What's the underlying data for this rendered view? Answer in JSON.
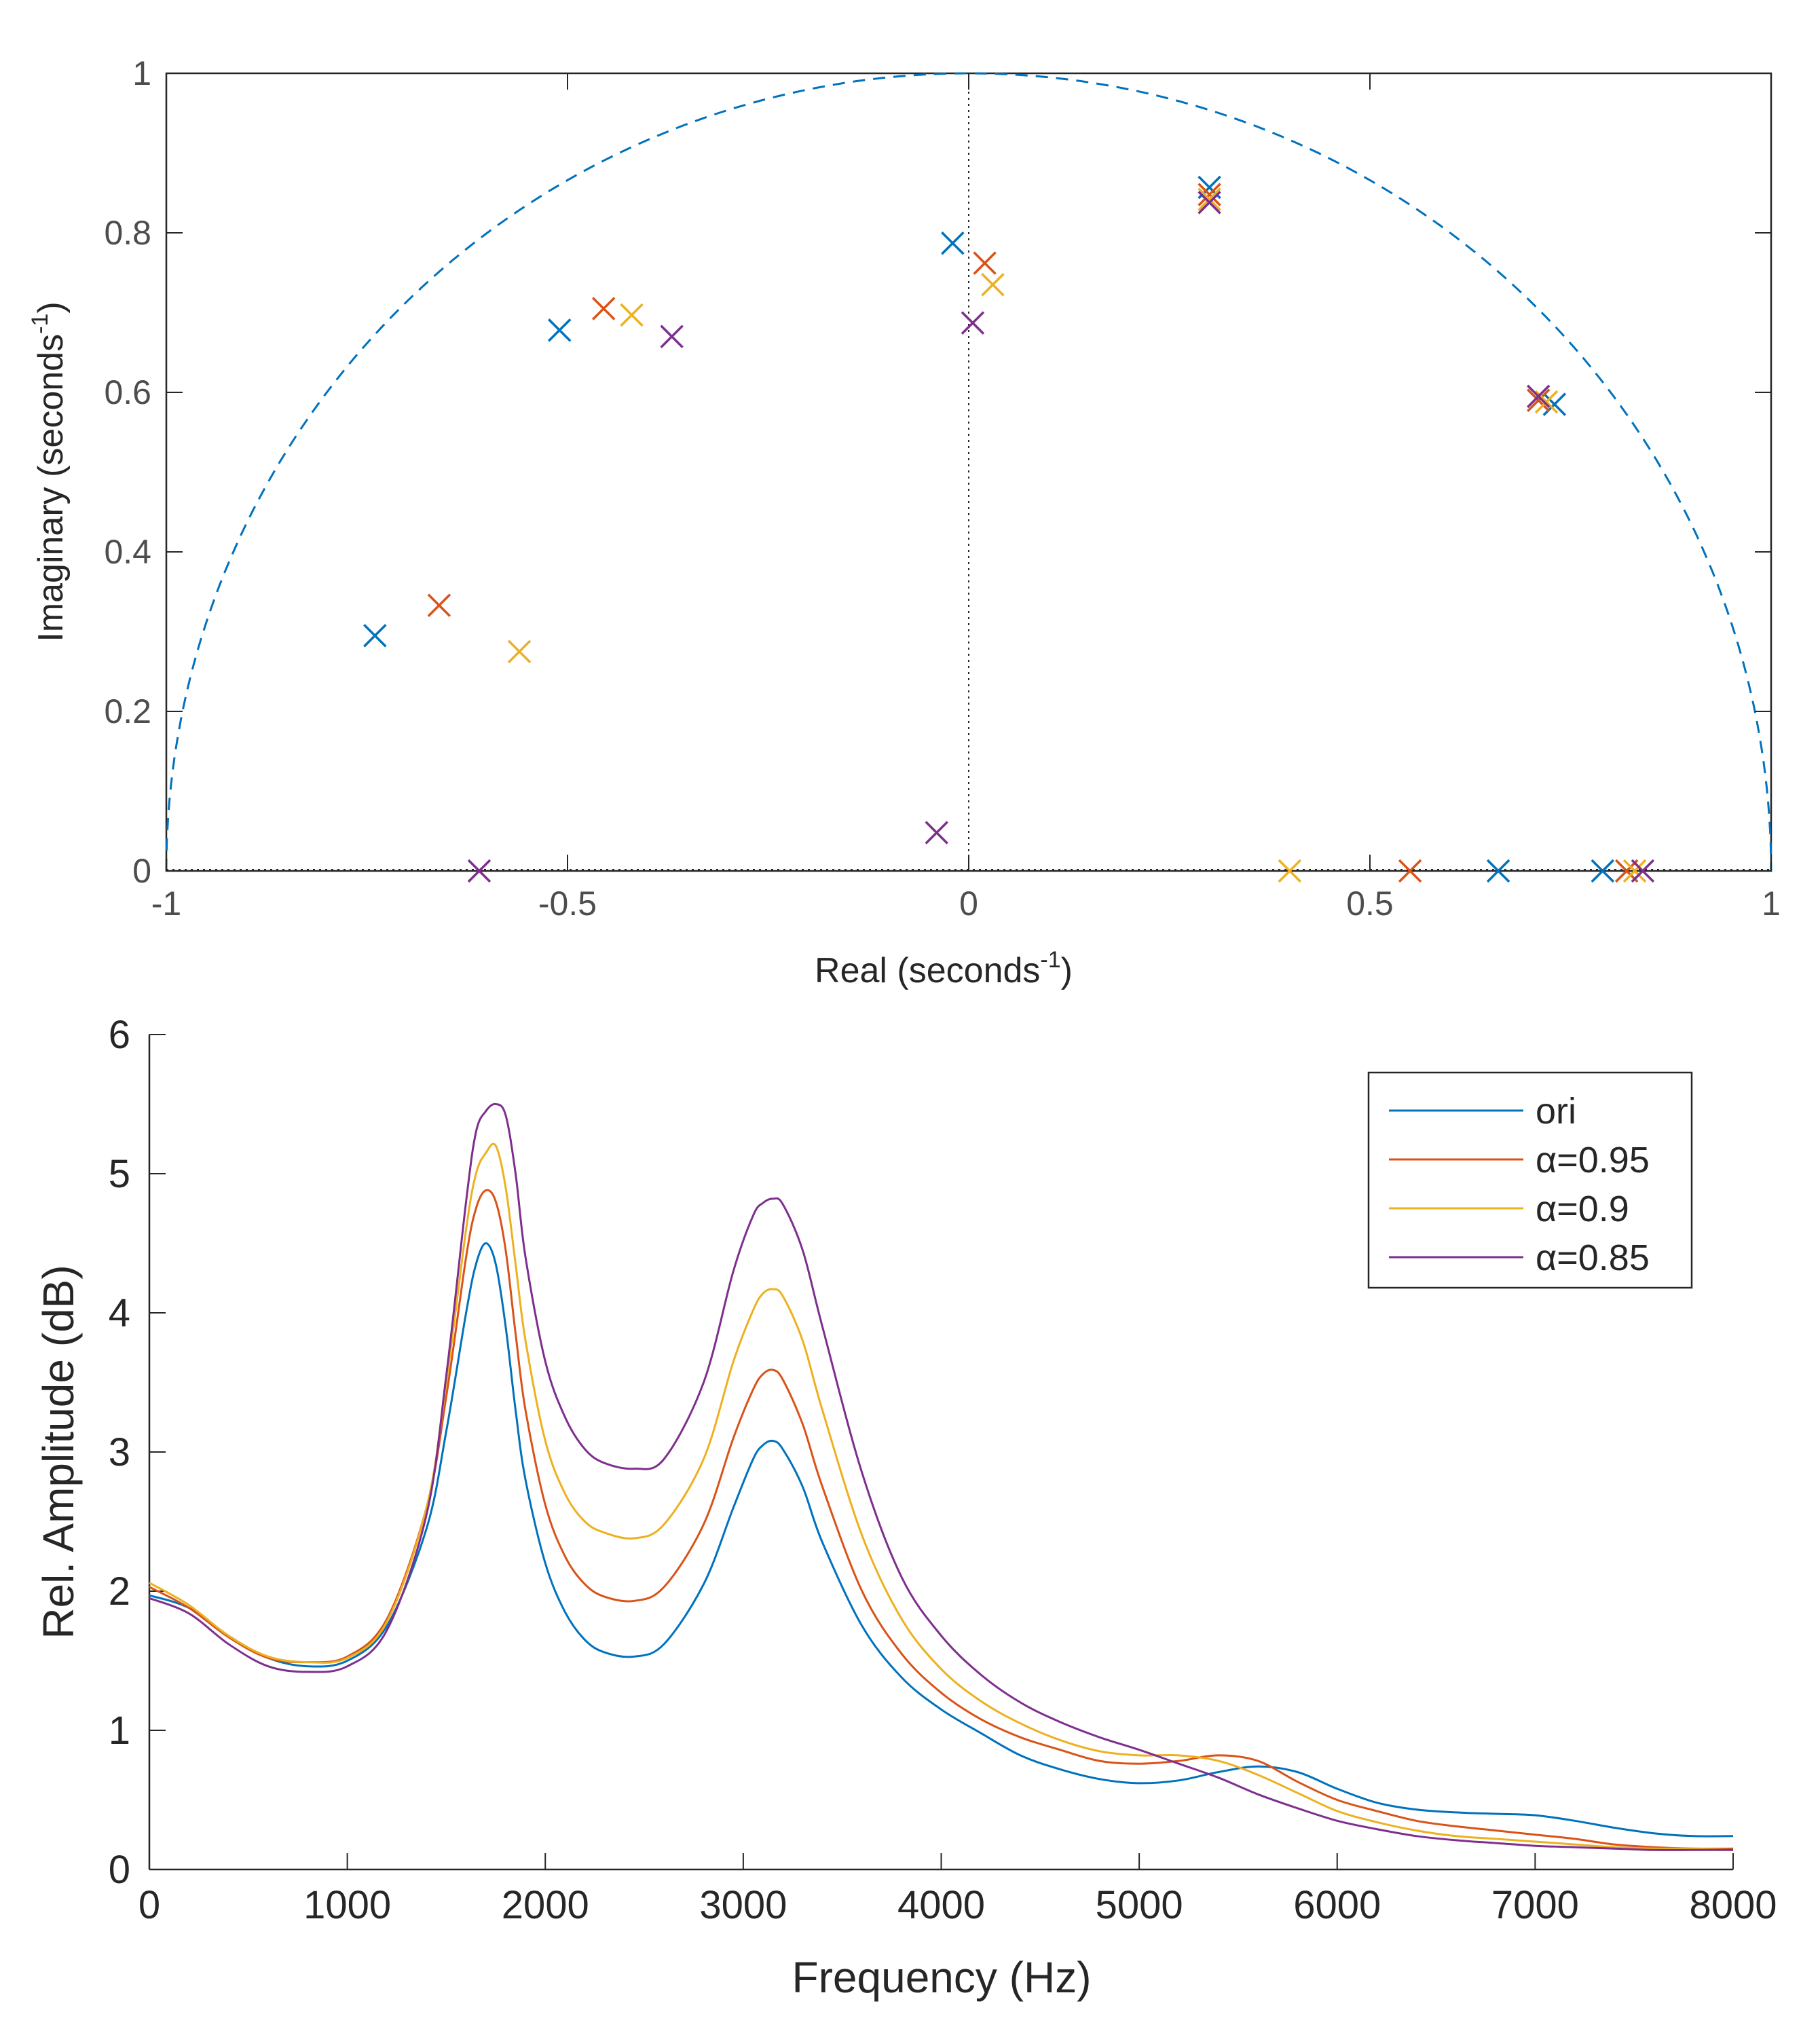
{
  "colors": {
    "blue": "#0072BD",
    "orange": "#D95319",
    "yellow": "#EDB120",
    "purple": "#7E2F8E",
    "axis": "#262626",
    "tick_text_top": "#4d4d4d"
  },
  "chart_data": [
    {
      "type": "scatter",
      "title": "",
      "xlabel": "Real (seconds",
      "xlabel_sup": "-1",
      "xlabel_tail": ")",
      "ylabel": "Imaginary (seconds",
      "ylabel_sup": "-1",
      "ylabel_tail": ")",
      "xlim": [
        -1,
        1
      ],
      "ylim": [
        0,
        1
      ],
      "xticks": [
        -1,
        -0.5,
        0,
        0.5,
        1
      ],
      "xtick_labels": [
        "-1",
        "-0.5",
        "0",
        "0.5",
        "1"
      ],
      "yticks": [
        0,
        0.2,
        0.4,
        0.6,
        0.8,
        1
      ],
      "ytick_labels": [
        "0",
        "0.2",
        "0.4",
        "0.6",
        "0.8",
        "1"
      ],
      "grid": false,
      "unit_circle": "dashed",
      "marker": "x",
      "series": [
        {
          "color": "blue",
          "points": [
            [
              -0.74,
              0.295
            ],
            [
              -0.51,
              0.678
            ],
            [
              -0.02,
              0.787
            ],
            [
              0.3,
              0.857
            ],
            [
              0.66,
              0.0
            ],
            [
              0.73,
              0.585
            ],
            [
              0.79,
              0.0
            ]
          ]
        },
        {
          "color": "orange",
          "points": [
            [
              -0.66,
              0.333
            ],
            [
              -0.455,
              0.705
            ],
            [
              0.02,
              0.762
            ],
            [
              0.3,
              0.848
            ],
            [
              0.55,
              0.0
            ],
            [
              0.71,
              0.59
            ],
            [
              0.82,
              0.0
            ]
          ]
        },
        {
          "color": "yellow",
          "points": [
            [
              -0.56,
              0.275
            ],
            [
              -0.42,
              0.697
            ],
            [
              0.03,
              0.735
            ],
            [
              0.3,
              0.842
            ],
            [
              0.4,
              0.0
            ],
            [
              0.72,
              0.588
            ],
            [
              0.83,
              0.0
            ]
          ]
        },
        {
          "color": "purple",
          "points": [
            [
              -0.61,
              0.0
            ],
            [
              -0.37,
              0.67
            ],
            [
              -0.04,
              0.048
            ],
            [
              0.005,
              0.687
            ],
            [
              0.3,
              0.838
            ],
            [
              0.71,
              0.595
            ],
            [
              0.84,
              0.0
            ]
          ]
        }
      ]
    },
    {
      "type": "line",
      "title": "",
      "xlabel": "Frequency (Hz)",
      "ylabel": "Rel. Amplitude (dB)",
      "xlim": [
        0,
        8000
      ],
      "ylim": [
        0,
        6
      ],
      "xticks": [
        0,
        1000,
        2000,
        3000,
        4000,
        5000,
        6000,
        7000,
        8000
      ],
      "xtick_labels": [
        "0",
        "1000",
        "2000",
        "3000",
        "4000",
        "5000",
        "6000",
        "7000",
        "8000"
      ],
      "yticks": [
        0,
        1,
        2,
        3,
        4,
        5,
        6
      ],
      "ytick_labels": [
        "0",
        "1",
        "2",
        "3",
        "4",
        "5",
        "6"
      ],
      "grid": false,
      "legend_position": "top-right",
      "x": [
        0,
        200,
        400,
        600,
        800,
        1000,
        1200,
        1400,
        1500,
        1600,
        1650,
        1700,
        1750,
        1800,
        1850,
        1900,
        2000,
        2100,
        2200,
        2300,
        2450,
        2600,
        2800,
        2950,
        3050,
        3100,
        3150,
        3200,
        3300,
        3400,
        3600,
        3800,
        4000,
        4200,
        4400,
        4600,
        4800,
        5000,
        5200,
        5400,
        5600,
        5800,
        6000,
        6200,
        6400,
        6600,
        6800,
        7000,
        7200,
        7400,
        7600,
        7800,
        8000
      ],
      "series": [
        {
          "name": "ori",
          "color": "blue",
          "values": [
            1.97,
            1.88,
            1.68,
            1.52,
            1.46,
            1.5,
            1.75,
            2.45,
            3.15,
            4.0,
            4.35,
            4.5,
            4.35,
            3.9,
            3.3,
            2.8,
            2.2,
            1.85,
            1.65,
            1.56,
            1.53,
            1.62,
            2.05,
            2.6,
            2.95,
            3.05,
            3.08,
            3.02,
            2.75,
            2.35,
            1.75,
            1.38,
            1.15,
            0.98,
            0.82,
            0.72,
            0.65,
            0.62,
            0.64,
            0.7,
            0.74,
            0.7,
            0.58,
            0.48,
            0.43,
            0.41,
            0.4,
            0.39,
            0.35,
            0.3,
            0.26,
            0.24,
            0.24
          ]
        },
        {
          "name": "α=0.95",
          "color": "orange",
          "values": [
            2.03,
            1.88,
            1.67,
            1.52,
            1.49,
            1.53,
            1.8,
            2.6,
            3.4,
            4.4,
            4.75,
            4.88,
            4.8,
            4.45,
            3.85,
            3.3,
            2.62,
            2.25,
            2.05,
            1.96,
            1.93,
            2.03,
            2.48,
            3.1,
            3.45,
            3.56,
            3.59,
            3.52,
            3.2,
            2.75,
            2.0,
            1.55,
            1.27,
            1.08,
            0.95,
            0.86,
            0.78,
            0.76,
            0.78,
            0.82,
            0.78,
            0.63,
            0.5,
            0.42,
            0.35,
            0.31,
            0.28,
            0.25,
            0.22,
            0.18,
            0.16,
            0.15,
            0.15
          ]
        },
        {
          "name": "α=0.9",
          "color": "yellow",
          "values": [
            2.06,
            1.9,
            1.68,
            1.53,
            1.49,
            1.52,
            1.78,
            2.6,
            3.5,
            4.6,
            5.0,
            5.15,
            5.2,
            4.9,
            4.35,
            3.8,
            3.08,
            2.7,
            2.5,
            2.42,
            2.38,
            2.48,
            2.95,
            3.65,
            4.02,
            4.14,
            4.17,
            4.12,
            3.8,
            3.3,
            2.4,
            1.8,
            1.44,
            1.21,
            1.05,
            0.93,
            0.85,
            0.82,
            0.82,
            0.78,
            0.68,
            0.55,
            0.42,
            0.34,
            0.28,
            0.24,
            0.22,
            0.2,
            0.18,
            0.16,
            0.15,
            0.15,
            0.14
          ]
        },
        {
          "name": "α=0.85",
          "color": "purple",
          "values": [
            1.95,
            1.84,
            1.62,
            1.46,
            1.42,
            1.46,
            1.72,
            2.55,
            3.55,
            4.8,
            5.3,
            5.45,
            5.5,
            5.42,
            5.0,
            4.4,
            3.65,
            3.25,
            3.02,
            2.92,
            2.88,
            2.95,
            3.5,
            4.3,
            4.7,
            4.79,
            4.82,
            4.78,
            4.45,
            3.9,
            2.85,
            2.1,
            1.68,
            1.4,
            1.2,
            1.06,
            0.95,
            0.86,
            0.76,
            0.66,
            0.54,
            0.44,
            0.35,
            0.29,
            0.24,
            0.21,
            0.19,
            0.17,
            0.16,
            0.15,
            0.14,
            0.14,
            0.14
          ]
        }
      ]
    }
  ]
}
